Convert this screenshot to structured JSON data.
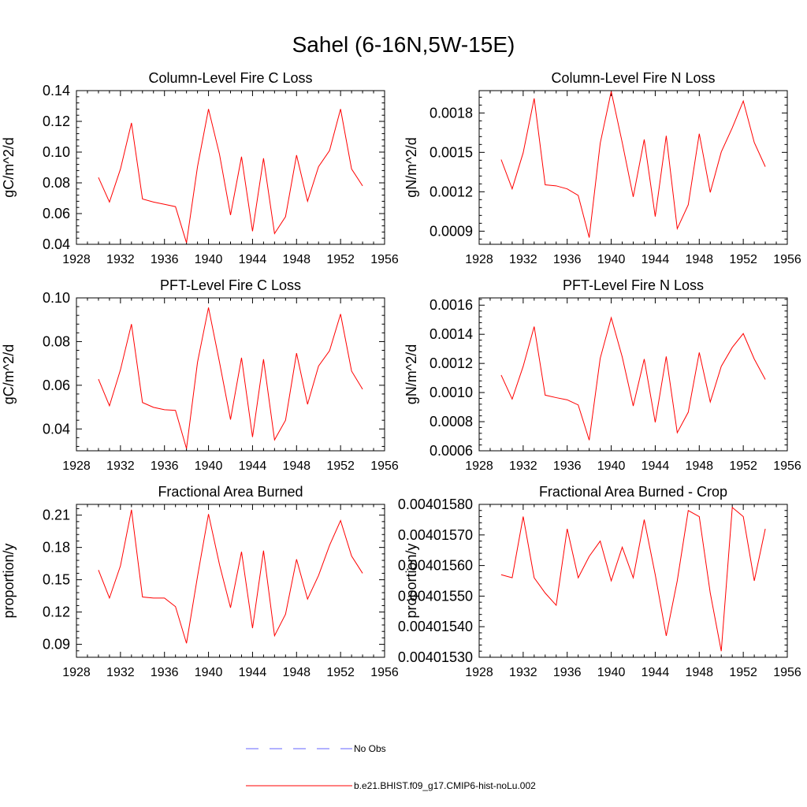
{
  "figure": {
    "title": "Sahel (6-16N,5W-15E)"
  },
  "legend": {
    "position": "bottom-center",
    "entries": [
      {
        "label": "No Obs",
        "color": "#6666ff",
        "style": "dashed"
      },
      {
        "label": "b.e21.BHIST.f09_g17.CMIP6-hist-noLu.002",
        "color": "#ff0000",
        "style": "solid"
      }
    ]
  },
  "chart_data": [
    {
      "type": "line",
      "title": "Column-Level Fire C Loss",
      "xlabel": "",
      "ylabel": "gC/m^2/d",
      "xlim": [
        1928,
        1956
      ],
      "ylim": [
        0.04,
        0.14
      ],
      "xticks": [
        "1928",
        "1932",
        "1936",
        "1940",
        "1944",
        "1948",
        "1952",
        "1956"
      ],
      "yticks": [
        "0.04",
        "0.06",
        "0.08",
        "0.10",
        "0.12",
        "0.14"
      ],
      "x": [
        1930,
        1931,
        1932,
        1933,
        1934,
        1935,
        1936,
        1937,
        1938,
        1939,
        1940,
        1941,
        1942,
        1943,
        1944,
        1945,
        1946,
        1947,
        1948,
        1949,
        1950,
        1951,
        1952,
        1953,
        1954
      ],
      "series": [
        {
          "name": "b.e21.BHIST.f09_g17.CMIP6-hist-noLu.002",
          "color": "#ff0000",
          "values": [
            0.0835,
            0.0675,
            0.089,
            0.119,
            0.0695,
            0.0675,
            0.066,
            0.0645,
            0.041,
            0.0905,
            0.128,
            0.0985,
            0.059,
            0.097,
            0.0485,
            0.096,
            0.047,
            0.058,
            0.098,
            0.068,
            0.0905,
            0.101,
            0.128,
            0.089,
            0.078
          ]
        }
      ]
    },
    {
      "type": "line",
      "title": "Column-Level Fire N Loss",
      "xlabel": "",
      "ylabel": "gN/m^2/d",
      "xlim": [
        1928,
        1956
      ],
      "ylim": [
        0.0008,
        0.00197
      ],
      "xticks": [
        "1928",
        "1932",
        "1936",
        "1940",
        "1944",
        "1948",
        "1952",
        "1956"
      ],
      "yticks": [
        "0.0009",
        "0.0012",
        "0.0015",
        "0.0018"
      ],
      "x": [
        1930,
        1931,
        1932,
        1933,
        1934,
        1935,
        1936,
        1937,
        1938,
        1939,
        1940,
        1941,
        1942,
        1943,
        1944,
        1945,
        1946,
        1947,
        1948,
        1949,
        1950,
        1951,
        1952,
        1953,
        1954
      ],
      "series": [
        {
          "name": "b.e21.BHIST.f09_g17.CMIP6-hist-noLu.002",
          "color": "#ff0000",
          "values": [
            0.001445,
            0.001222,
            0.001497,
            0.001911,
            0.001253,
            0.001245,
            0.001222,
            0.001172,
            0.000851,
            0.001569,
            0.001964,
            0.001575,
            0.001161,
            0.001598,
            0.001011,
            0.001626,
            0.000919,
            0.001101,
            0.001642,
            0.001195,
            0.001503,
            0.001687,
            0.001891,
            0.001575,
            0.001391
          ]
        }
      ]
    },
    {
      "type": "line",
      "title": "PFT-Level Fire C Loss",
      "xlabel": "",
      "ylabel": "gC/m^2/d",
      "xlim": [
        1928,
        1956
      ],
      "ylim": [
        0.03,
        0.1
      ],
      "xticks": [
        "1928",
        "1932",
        "1936",
        "1940",
        "1944",
        "1948",
        "1952",
        "1956"
      ],
      "yticks": [
        "0.04",
        "0.06",
        "0.08",
        "0.10"
      ],
      "x": [
        1930,
        1931,
        1932,
        1933,
        1934,
        1935,
        1936,
        1937,
        1938,
        1939,
        1940,
        1941,
        1942,
        1943,
        1944,
        1945,
        1946,
        1947,
        1948,
        1949,
        1950,
        1951,
        1952,
        1953,
        1954
      ],
      "series": [
        {
          "name": "b.e21.BHIST.f09_g17.CMIP6-hist-noLu.002",
          "color": "#ff0000",
          "values": [
            0.0628,
            0.0506,
            0.0671,
            0.088,
            0.0521,
            0.0499,
            0.0488,
            0.0485,
            0.031,
            0.0705,
            0.0956,
            0.0705,
            0.0443,
            0.0726,
            0.0363,
            0.0719,
            0.035,
            0.044,
            0.0747,
            0.0513,
            0.0688,
            0.0758,
            0.0926,
            0.0665,
            0.0582
          ]
        }
      ]
    },
    {
      "type": "line",
      "title": "PFT-Level Fire N Loss",
      "xlabel": "",
      "ylabel": "gN/m^2/d",
      "xlim": [
        1928,
        1956
      ],
      "ylim": [
        0.0006,
        0.00165
      ],
      "xticks": [
        "1928",
        "1932",
        "1936",
        "1940",
        "1944",
        "1948",
        "1952",
        "1956"
      ],
      "yticks": [
        "0.0006",
        "0.0008",
        "0.0010",
        "0.0012",
        "0.0014",
        "0.0016"
      ],
      "x": [
        1930,
        1931,
        1932,
        1933,
        1934,
        1935,
        1936,
        1937,
        1938,
        1939,
        1940,
        1941,
        1942,
        1943,
        1944,
        1945,
        1946,
        1947,
        1948,
        1949,
        1950,
        1951,
        1952,
        1953,
        1954
      ],
      "series": [
        {
          "name": "b.e21.BHIST.f09_g17.CMIP6-hist-noLu.002",
          "color": "#ff0000",
          "values": [
            0.00112,
            0.000955,
            0.00118,
            0.001453,
            0.000982,
            0.000965,
            0.00095,
            0.000915,
            0.000673,
            0.001235,
            0.001514,
            0.001245,
            0.000908,
            0.00123,
            0.000795,
            0.001248,
            0.000724,
            0.000865,
            0.001275,
            0.000935,
            0.00118,
            0.00131,
            0.001405,
            0.00123,
            0.00109
          ]
        }
      ]
    },
    {
      "type": "line",
      "title": "Fractional Area Burned",
      "xlabel": "",
      "ylabel": "proportion/y",
      "xlim": [
        1928,
        1956
      ],
      "ylim": [
        0.078,
        0.22
      ],
      "xticks": [
        "1928",
        "1932",
        "1936",
        "1940",
        "1944",
        "1948",
        "1952",
        "1956"
      ],
      "yticks": [
        "0.09",
        "0.12",
        "0.15",
        "0.18",
        "0.21"
      ],
      "x": [
        1930,
        1931,
        1932,
        1933,
        1934,
        1935,
        1936,
        1937,
        1938,
        1939,
        1940,
        1941,
        1942,
        1943,
        1944,
        1945,
        1946,
        1947,
        1948,
        1949,
        1950,
        1951,
        1952,
        1953,
        1954
      ],
      "series": [
        {
          "name": "b.e21.BHIST.f09_g17.CMIP6-hist-noLu.002",
          "color": "#ff0000",
          "values": [
            0.159,
            0.133,
            0.163,
            0.215,
            0.134,
            0.133,
            0.133,
            0.125,
            0.091,
            0.153,
            0.211,
            0.164,
            0.124,
            0.176,
            0.105,
            0.177,
            0.098,
            0.118,
            0.169,
            0.132,
            0.154,
            0.182,
            0.205,
            0.172,
            0.156
          ]
        }
      ]
    },
    {
      "type": "line",
      "title": "Fractional Area Burned - Crop",
      "xlabel": "",
      "ylabel": "proportion/y",
      "xlim": [
        1928,
        1956
      ],
      "ylim": [
        0.0040153,
        0.0040158
      ],
      "xticks": [
        "1928",
        "1932",
        "1936",
        "1940",
        "1944",
        "1948",
        "1952",
        "1956"
      ],
      "yticks": [
        "0.00401530",
        "0.00401540",
        "0.00401550",
        "0.00401560",
        "0.00401570",
        "0.00401580"
      ],
      "x": [
        1930,
        1931,
        1932,
        1933,
        1934,
        1935,
        1936,
        1937,
        1938,
        1939,
        1940,
        1941,
        1942,
        1943,
        1944,
        1945,
        1946,
        1947,
        1948,
        1949,
        1950,
        1951,
        1952,
        1953,
        1954
      ],
      "series": [
        {
          "name": "b.e21.BHIST.f09_g17.CMIP6-hist-noLu.002",
          "color": "#ff0000",
          "values": [
            0.00401557,
            0.00401556,
            0.00401576,
            0.00401556,
            0.00401551,
            0.00401547,
            0.00401572,
            0.00401556,
            0.00401563,
            0.00401568,
            0.00401555,
            0.00401566,
            0.00401556,
            0.00401575,
            0.00401557,
            0.00401537,
            0.00401555,
            0.00401578,
            0.00401576,
            0.00401551,
            0.00401532,
            0.00401579,
            0.00401576,
            0.00401555,
            0.00401572
          ]
        }
      ]
    }
  ]
}
